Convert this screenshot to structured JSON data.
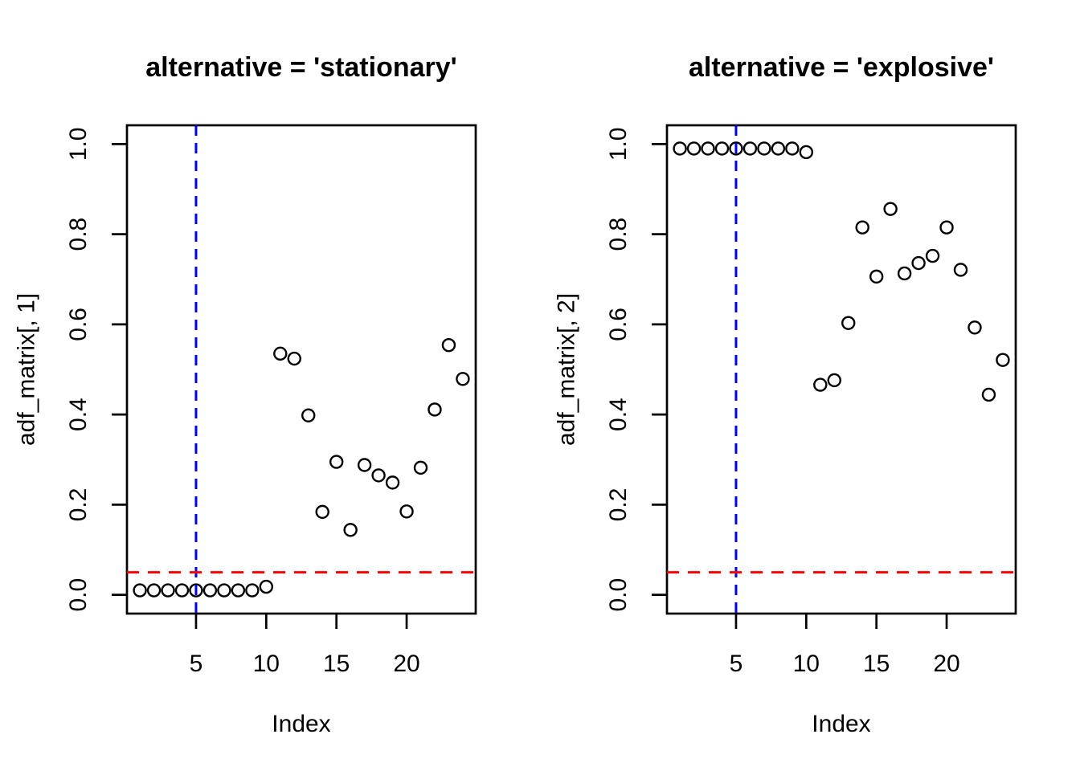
{
  "figure": {
    "background": "#FFFFFF",
    "point_color": "#000000",
    "vline_color": "#0000FF",
    "hline_color": "#FF0000"
  },
  "chart_data": [
    {
      "type": "scatter",
      "title": "alternative = 'stationary'",
      "xlabel": "Index",
      "ylabel": "adf_matrix[, 1]",
      "x": [
        1,
        2,
        3,
        4,
        5,
        6,
        7,
        8,
        9,
        10,
        11,
        12,
        13,
        14,
        15,
        16,
        17,
        18,
        19,
        20,
        21,
        22,
        23,
        24
      ],
      "y": [
        0.01,
        0.01,
        0.01,
        0.01,
        0.01,
        0.01,
        0.01,
        0.01,
        0.01,
        0.018,
        0.535,
        0.524,
        0.398,
        0.184,
        0.295,
        0.144,
        0.288,
        0.265,
        0.249,
        0.185,
        0.282,
        0.411,
        0.554,
        0.479
      ],
      "xticks": [
        5,
        10,
        15,
        20
      ],
      "yticks": [
        0.0,
        0.2,
        0.4,
        0.6,
        0.8,
        1.0
      ],
      "ytick_labels": [
        "0.0",
        "0.2",
        "0.4",
        "0.6",
        "0.8",
        "1.0"
      ],
      "xlim": [
        0.08,
        24.92
      ],
      "ylim": [
        -0.0416,
        1.0416
      ],
      "grid": false,
      "legend": null,
      "point_style": "open-circle",
      "vline": {
        "x": 5,
        "color": "#0000FF",
        "style": "dashed"
      },
      "hline": {
        "y": 0.05,
        "color": "#FF0000",
        "style": "dashed"
      }
    },
    {
      "type": "scatter",
      "title": "alternative = 'explosive'",
      "xlabel": "Index",
      "ylabel": "adf_matrix[, 2]",
      "x": [
        1,
        2,
        3,
        4,
        5,
        6,
        7,
        8,
        9,
        10,
        11,
        12,
        13,
        14,
        15,
        16,
        17,
        18,
        19,
        20,
        21,
        22,
        23,
        24
      ],
      "y": [
        0.99,
        0.99,
        0.99,
        0.99,
        0.99,
        0.99,
        0.99,
        0.99,
        0.99,
        0.982,
        0.466,
        0.476,
        0.603,
        0.815,
        0.706,
        0.856,
        0.713,
        0.736,
        0.752,
        0.815,
        0.721,
        0.593,
        0.444,
        0.521
      ],
      "xticks": [
        5,
        10,
        15,
        20
      ],
      "yticks": [
        0.0,
        0.2,
        0.4,
        0.6,
        0.8,
        1.0
      ],
      "ytick_labels": [
        "0.0",
        "0.2",
        "0.4",
        "0.6",
        "0.8",
        "1.0"
      ],
      "xlim": [
        0.08,
        24.92
      ],
      "ylim": [
        -0.0416,
        1.0416
      ],
      "grid": false,
      "legend": null,
      "point_style": "open-circle",
      "vline": {
        "x": 5,
        "color": "#0000FF",
        "style": "dashed"
      },
      "hline": {
        "y": 0.05,
        "color": "#FF0000",
        "style": "dashed"
      }
    }
  ]
}
